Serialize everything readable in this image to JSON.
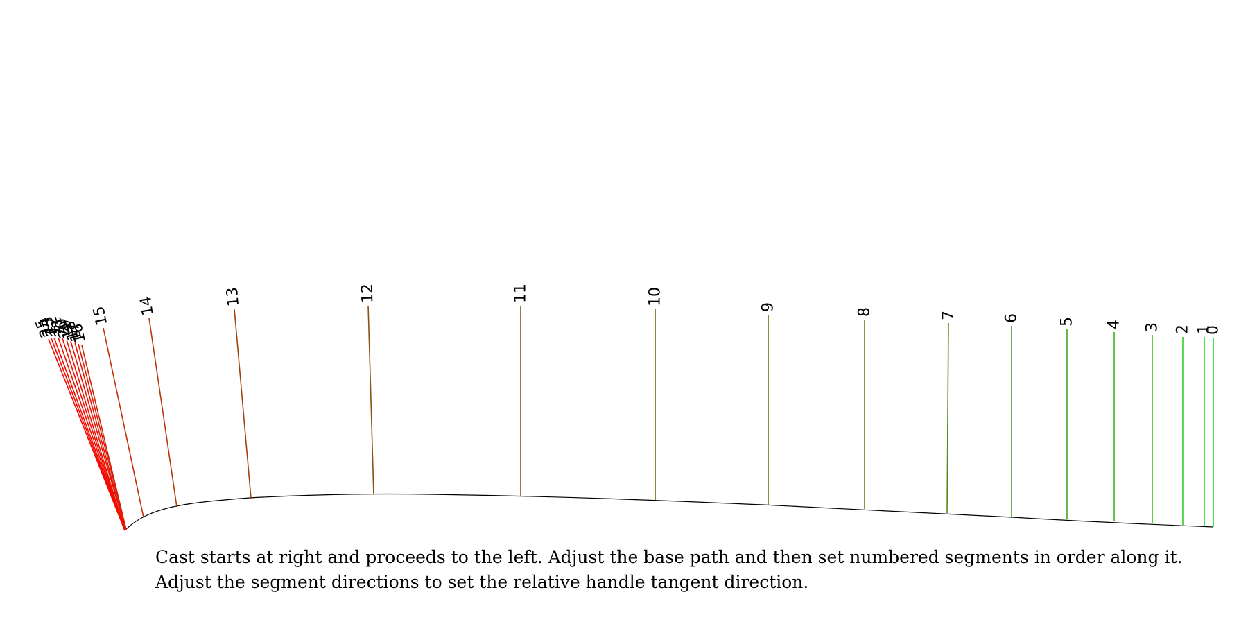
{
  "diagram": {
    "segments": [
      {
        "label": "0",
        "color": "#22dd22"
      },
      {
        "label": "1",
        "color": "#2ad628"
      },
      {
        "label": "2",
        "color": "#33cc22"
      },
      {
        "label": "3",
        "color": "#38c020"
      },
      {
        "label": "4",
        "color": "#3cb620"
      },
      {
        "label": "5",
        "color": "#42a820"
      },
      {
        "label": "6",
        "color": "#4a9a1e"
      },
      {
        "label": "7",
        "color": "#558a1a"
      },
      {
        "label": "8",
        "color": "#5f8018"
      },
      {
        "label": "9",
        "color": "#6a7214"
      },
      {
        "label": "10",
        "color": "#756612"
      },
      {
        "label": "11",
        "color": "#7f5e10"
      },
      {
        "label": "12",
        "color": "#8a5010"
      },
      {
        "label": "13",
        "color": "#a0440c"
      },
      {
        "label": "14",
        "color": "#b5380a"
      },
      {
        "label": "15",
        "color": "#c62c08"
      },
      {
        "label": "16",
        "color": "#d42206"
      },
      {
        "label": "17",
        "color": "#dc1c06"
      },
      {
        "label": "18",
        "color": "#e21804"
      },
      {
        "label": "19",
        "color": "#e61404"
      },
      {
        "label": "20",
        "color": "#ea1202"
      },
      {
        "label": "21",
        "color": "#ee1002"
      },
      {
        "label": "22",
        "color": "#f00e02"
      },
      {
        "label": "23",
        "color": "#f20c00"
      },
      {
        "label": "24",
        "color": "#f40a00"
      },
      {
        "label": "25",
        "color": "#f60800"
      }
    ],
    "base_path_color": "#000000"
  },
  "caption": {
    "line1": "Cast starts at right and proceeds to the left.  Adjust the base path and then set numbered segments in order along it.",
    "line2": "Adjust the segment directions to set the relative handle tangent direction."
  }
}
